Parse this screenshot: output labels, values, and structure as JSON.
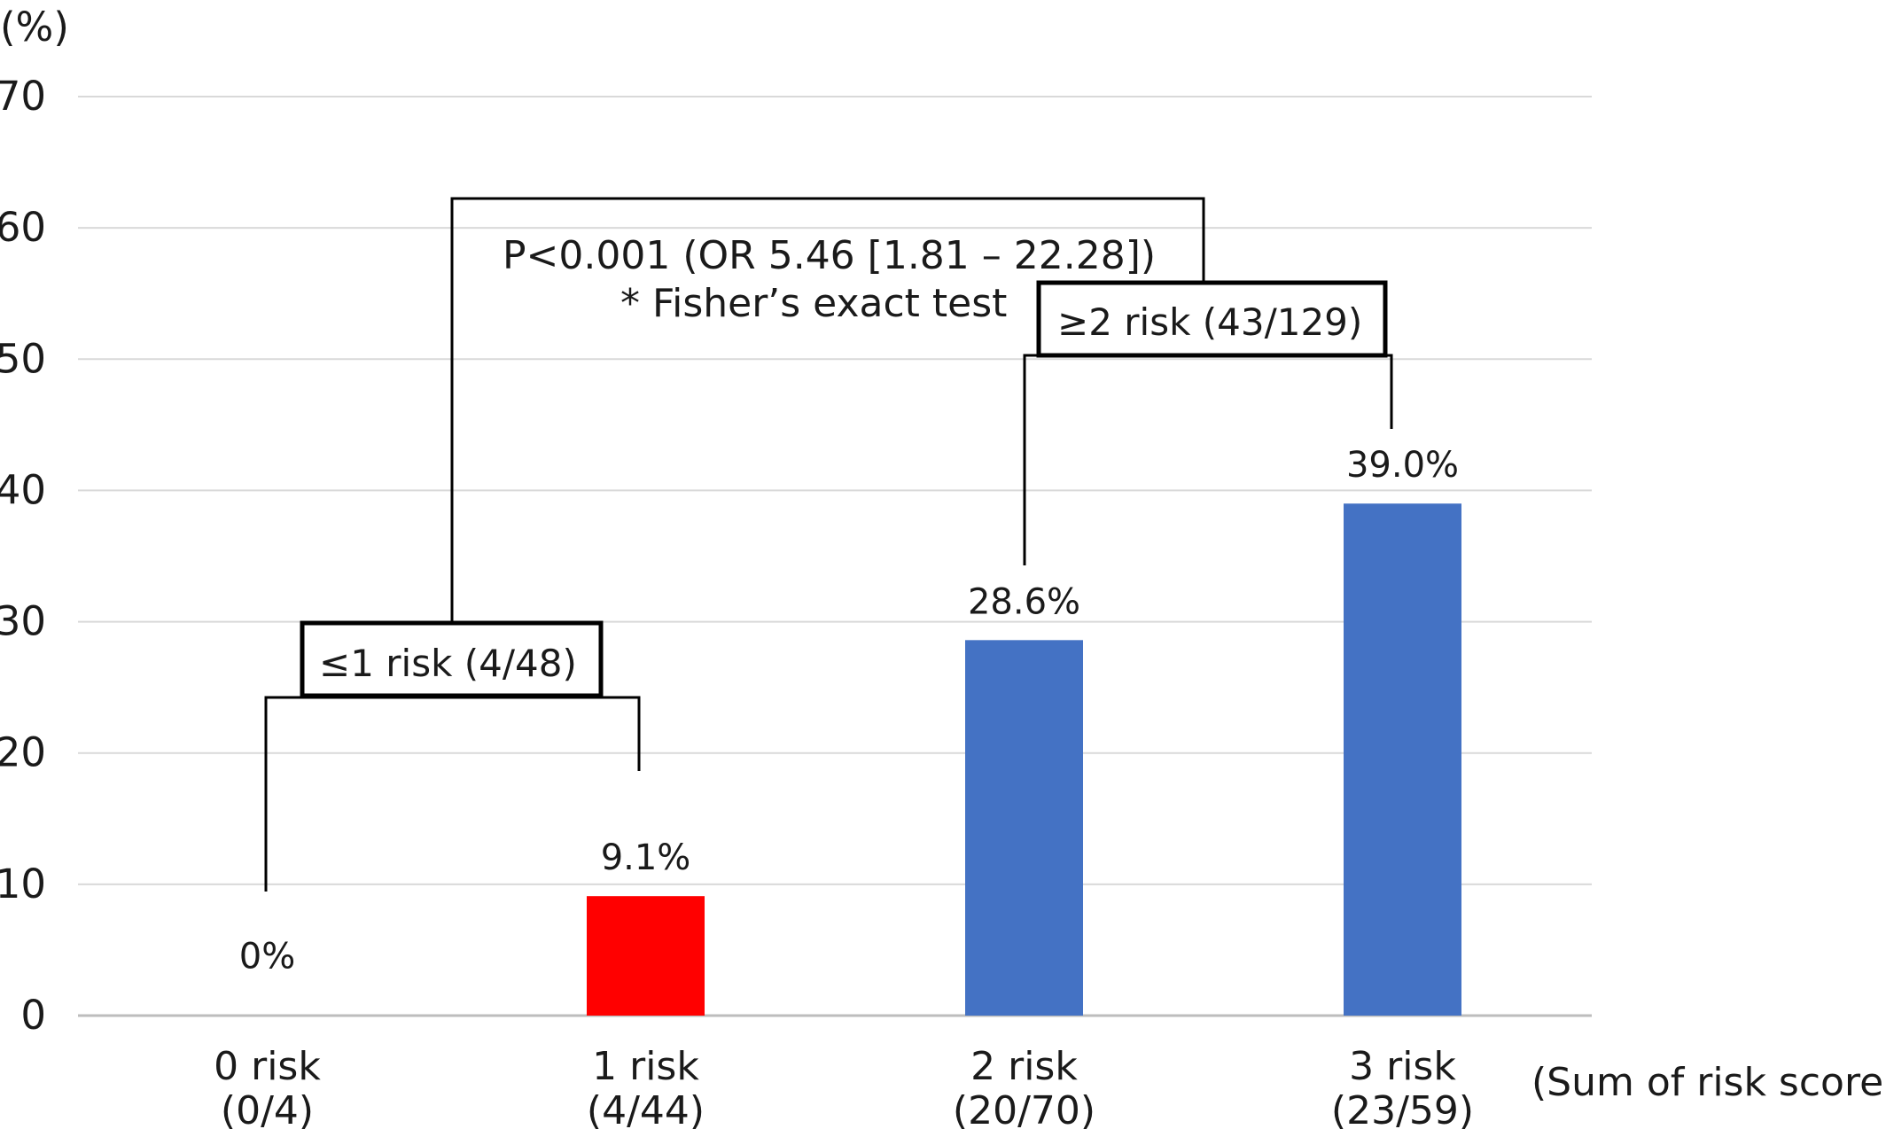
{
  "chart_data": {
    "type": "bar",
    "ylabel": "(%)",
    "xlabel": "(Sum of risk score)",
    "ylim": [
      0,
      70
    ],
    "yticks": [
      "0",
      "10",
      "20",
      "30",
      "40",
      "50",
      "60",
      "70"
    ],
    "grid": true,
    "categories": [
      "0 risk",
      "1 risk",
      "2 risk",
      "3 risk"
    ],
    "counts": [
      "(0/4)",
      "(4/44)",
      "(20/70)",
      "(23/59)"
    ],
    "values": [
      0,
      9.1,
      28.6,
      39.0
    ],
    "value_labels": [
      "0%",
      "9.1%",
      "28.6%",
      "39.0%"
    ],
    "colors": [
      "#ffffff",
      "#ff0000",
      "#4472c4",
      "#4472c4"
    ],
    "annotations": {
      "group_low": "≤1 risk (4/48)",
      "group_high": "≥2 risk (43/129)",
      "pvalue": "P<0.001 (OR 5.46 [1.81 – 22.28])",
      "test": "* Fisher’s exact test"
    }
  }
}
